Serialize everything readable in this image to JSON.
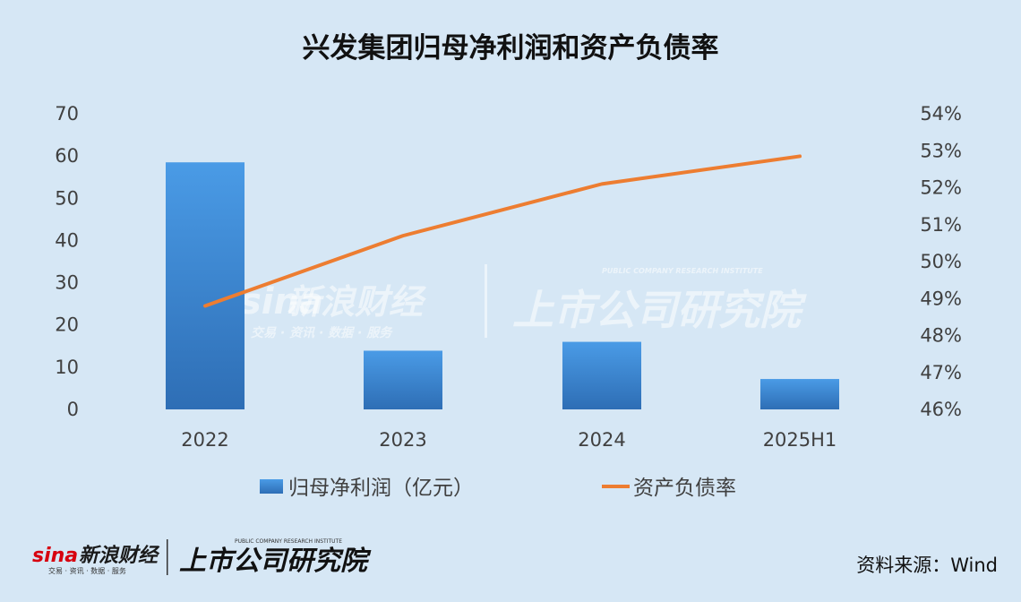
{
  "chart_data": {
    "type": "bar+line",
    "title": "兴发集团归母净利润和资产负债率",
    "categories": [
      "2022",
      "2023",
      "2024",
      "2025H1"
    ],
    "series": [
      {
        "name": "归母净利润（亿元）",
        "type": "bar",
        "axis": "left",
        "values": [
          58.5,
          13.9,
          16.0,
          7.2
        ]
      },
      {
        "name": "资产负债率",
        "type": "line",
        "axis": "right",
        "values": [
          48.8,
          50.7,
          52.1,
          52.85
        ]
      }
    ],
    "yleft": {
      "min": 0,
      "max": 70,
      "step": 10,
      "ticks": [
        "0",
        "10",
        "20",
        "30",
        "40",
        "50",
        "60",
        "70"
      ]
    },
    "yright": {
      "min": 46,
      "max": 54,
      "step": 1,
      "ticks": [
        "46%",
        "47%",
        "48%",
        "49%",
        "50%",
        "51%",
        "52%",
        "53%",
        "54%"
      ]
    },
    "legend_position": "bottom",
    "colors": {
      "bar_top": "#4a9be6",
      "bar_bottom": "#2e6eb5",
      "line": "#ed7d31",
      "background": "#d6e7f5"
    }
  },
  "watermark": {
    "brand": "sina",
    "name": "新浪财经",
    "tagline": "交易 · 资讯 · 数据 · 服务",
    "institute": "上市公司研究院",
    "institute_en": "PUBLIC COMPANY RESEARCH INSTITUTE"
  },
  "footer": {
    "source": "资料来源：Wind"
  }
}
